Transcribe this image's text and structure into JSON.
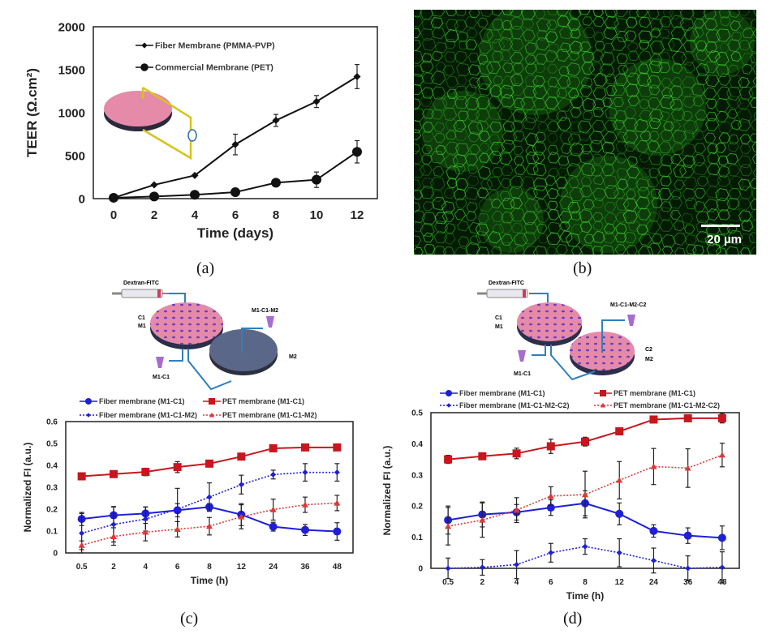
{
  "captions": {
    "a": "(a)",
    "b": "(b)",
    "c": "(c)",
    "d": "(d)"
  },
  "micrograph": {
    "scale_bar_label": "20 µm",
    "stain_color": "#3ddc2a"
  },
  "schematic_c": {
    "syringe_label": "Dextran-FITC",
    "labels": [
      "C1",
      "M1",
      "M1-C1",
      "M1-C1-M2",
      "M2"
    ]
  },
  "schematic_d": {
    "syringe_label": "Dextran-FITC",
    "labels": [
      "C1",
      "M1",
      "M1-C1",
      "M1-C1-M2-C2",
      "C2",
      "M2"
    ]
  },
  "chart_data": [
    {
      "id": "a",
      "type": "line",
      "title": "",
      "xlabel": "Time (days)",
      "ylabel": "TEER (Ω.cm²)",
      "x": [
        0,
        2,
        4,
        6,
        8,
        10,
        12
      ],
      "xticks": [
        "0",
        "2",
        "4",
        "6",
        "8",
        "10",
        "12"
      ],
      "yticks": [
        "0",
        "500",
        "1000",
        "1500",
        "2000"
      ],
      "ylim": [
        0,
        2000
      ],
      "xlim": [
        -1,
        13
      ],
      "legend": "top-left",
      "series": [
        {
          "name": "Fiber Membrane (PMMA-PVP)",
          "marker": "diamond",
          "color": "#111111",
          "values": [
            10,
            160,
            270,
            630,
            910,
            1130,
            1420
          ],
          "errors": [
            0,
            0,
            0,
            120,
            70,
            70,
            140
          ]
        },
        {
          "name": "Commercial Membrane (PET)",
          "marker": "circle",
          "color": "#111111",
          "values": [
            10,
            25,
            45,
            75,
            185,
            220,
            545
          ],
          "errors": [
            0,
            0,
            0,
            0,
            0,
            90,
            130
          ]
        }
      ]
    },
    {
      "id": "c",
      "type": "line",
      "xlabel": "Time (h)",
      "ylabel": "Normalized FI (a.u.)",
      "categories": [
        "0.5",
        "2",
        "4",
        "6",
        "8",
        "12",
        "24",
        "36",
        "48"
      ],
      "yticks": [
        "0",
        "0.1",
        "0.2",
        "0.3",
        "0.4",
        "0.5",
        "0.6"
      ],
      "ylim": [
        0,
        0.6
      ],
      "legend": "top",
      "series": [
        {
          "name": "Fiber membrane (M1-C1)",
          "marker": "circle",
          "style": "solid",
          "color": "#1f1fd6",
          "values": [
            0.155,
            0.172,
            0.18,
            0.195,
            0.21,
            0.175,
            0.12,
            0.105,
            0.098
          ],
          "errors": [
            0.03,
            0.04,
            0.03,
            0.03,
            0.015,
            0.05,
            0.02,
            0.025,
            0.04
          ]
        },
        {
          "name": "PET membrane (M1-C1)",
          "marker": "square",
          "style": "solid",
          "color": "#c8161e",
          "values": [
            0.35,
            0.36,
            0.37,
            0.392,
            0.408,
            0.44,
            0.478,
            0.482,
            0.482
          ],
          "errors": [
            0.01,
            0.01,
            0.017,
            0.025,
            0.015,
            0.008,
            0.008,
            0.008,
            0.015
          ]
        },
        {
          "name": "Fiber membrane (M1-C1-M2)",
          "marker": "diamond",
          "style": "dotted",
          "color": "#1f1fd6",
          "values": [
            0.09,
            0.13,
            0.155,
            0.2,
            0.255,
            0.312,
            0.358,
            0.368,
            0.368
          ],
          "errors": [
            0.09,
            0.08,
            0.055,
            0.095,
            0.065,
            0.043,
            0.02,
            0.04,
            0.04
          ]
        },
        {
          "name": "PET membrane (M1-C1-M2)",
          "marker": "triangle",
          "style": "dotted",
          "color": "#d83a3a",
          "values": [
            0.035,
            0.075,
            0.095,
            0.108,
            0.122,
            0.165,
            0.198,
            0.22,
            0.228
          ],
          "errors": [
            0.02,
            0.04,
            0.04,
            0.035,
            0.04,
            0.055,
            0.048,
            0.035,
            0.035
          ]
        }
      ]
    },
    {
      "id": "d",
      "type": "line",
      "xlabel": "Time (h)",
      "ylabel": "Normalized FI (a.u.)",
      "categories": [
        "0.5",
        "2",
        "4",
        "6",
        "8",
        "12",
        "24",
        "36",
        "48"
      ],
      "yticks": [
        "0",
        "0.1",
        "0.2",
        "0.3",
        "0.4",
        "0.5"
      ],
      "ylim": [
        0,
        0.5
      ],
      "legend": "top",
      "series": [
        {
          "name": "Fiber membrane (M1-C1)",
          "marker": "circle",
          "style": "solid",
          "color": "#1f1fd6",
          "values": [
            0.155,
            0.173,
            0.18,
            0.195,
            0.209,
            0.175,
            0.12,
            0.105,
            0.098
          ],
          "errors": [
            0.045,
            0.04,
            0.025,
            0.025,
            0.04,
            0.035,
            0.02,
            0.025,
            0.038
          ]
        },
        {
          "name": "PET membrane (M1-C1)",
          "marker": "square",
          "style": "solid",
          "color": "#c8161e",
          "values": [
            0.35,
            0.36,
            0.369,
            0.392,
            0.407,
            0.44,
            0.478,
            0.482,
            0.482
          ],
          "errors": [
            0.013,
            0.008,
            0.017,
            0.023,
            0.014,
            0.008,
            0.008,
            0.008,
            0.015
          ]
        },
        {
          "name": "Fiber membrane (M1-C1-M2-C2)",
          "marker": "diamond",
          "style": "dotted",
          "color": "#1f1fd6",
          "values": [
            0.0,
            0.003,
            0.012,
            0.05,
            0.07,
            0.05,
            0.025,
            0.0,
            0.003
          ],
          "errors": [
            0.033,
            0.025,
            0.045,
            0.03,
            0.025,
            0.045,
            0.04,
            0.04,
            0.05
          ]
        },
        {
          "name": "PET membrane (M1-C1-M2-C2)",
          "marker": "triangle",
          "style": "dotted",
          "color": "#d83a3a",
          "values": [
            0.135,
            0.155,
            0.187,
            0.232,
            0.237,
            0.283,
            0.327,
            0.322,
            0.364
          ],
          "errors": [
            0.06,
            0.055,
            0.04,
            0.03,
            0.075,
            0.06,
            0.058,
            0.062,
            0.038
          ]
        }
      ]
    }
  ]
}
